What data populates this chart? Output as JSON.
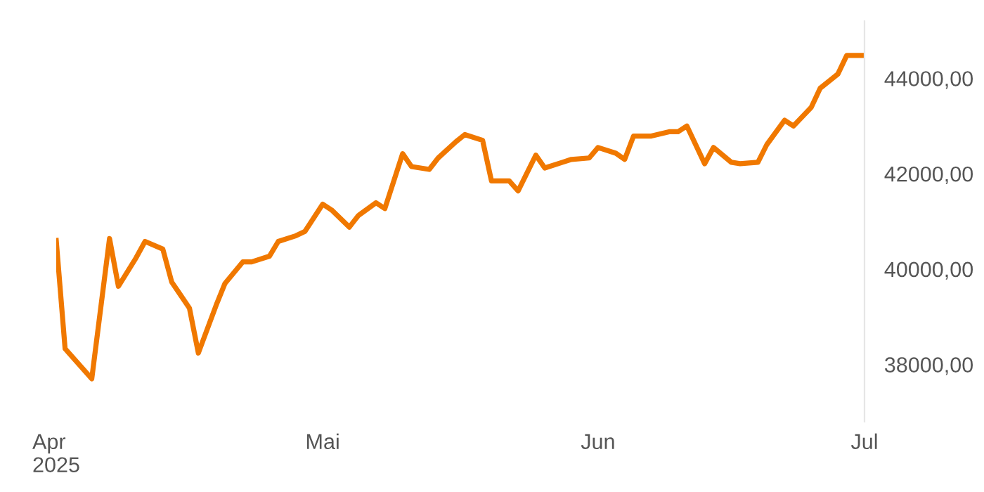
{
  "chart_data": {
    "type": "line",
    "x": [
      "2025-04-01",
      "2025-04-02",
      "2025-04-05",
      "2025-04-07",
      "2025-04-08",
      "2025-04-10",
      "2025-04-11",
      "2025-04-13",
      "2025-04-14",
      "2025-04-16",
      "2025-04-17",
      "2025-04-19",
      "2025-04-20",
      "2025-04-22",
      "2025-04-23",
      "2025-04-25",
      "2025-04-26",
      "2025-04-28",
      "2025-04-29",
      "2025-05-01",
      "2025-05-02",
      "2025-05-04",
      "2025-05-05",
      "2025-05-07",
      "2025-05-08",
      "2025-05-10",
      "2025-05-11",
      "2025-05-13",
      "2025-05-14",
      "2025-05-16",
      "2025-05-17",
      "2025-05-19",
      "2025-05-20",
      "2025-05-22",
      "2025-05-23",
      "2025-05-25",
      "2025-05-26",
      "2025-05-28",
      "2025-05-29",
      "2025-05-31",
      "2025-06-01",
      "2025-06-03",
      "2025-06-04",
      "2025-06-05",
      "2025-06-07",
      "2025-06-09",
      "2025-06-10",
      "2025-06-11",
      "2025-06-13",
      "2025-06-14",
      "2025-06-16",
      "2025-06-17",
      "2025-06-19",
      "2025-06-20",
      "2025-06-22",
      "2025-06-23",
      "2025-06-25",
      "2025-06-26",
      "2025-06-28",
      "2025-06-29",
      "2025-07-01"
    ],
    "series": [
      {
        "color": "#f07800",
        "values": [
          40600,
          38330,
          37700,
          40640,
          39640,
          40240,
          40580,
          40420,
          39730,
          39180,
          38240,
          39240,
          39700,
          40150,
          40150,
          40270,
          40580,
          40700,
          40790,
          41360,
          41240,
          40880,
          41120,
          41390,
          41270,
          42420,
          42150,
          42090,
          42330,
          42670,
          42820,
          42700,
          41850,
          41850,
          41640,
          42390,
          42120,
          42240,
          42300,
          42330,
          42550,
          42430,
          42300,
          42790,
          42790,
          42880,
          42880,
          43000,
          42210,
          42550,
          42240,
          42210,
          42240,
          42610,
          43120,
          43000,
          43390,
          43790,
          44090,
          44480,
          44480
        ]
      }
    ],
    "xlim": [
      "2025-04-01",
      "2025-07-01"
    ],
    "xticks": [
      {
        "value": "2025-04-01",
        "label": "Apr\n2025"
      },
      {
        "value": "2025-05-01",
        "label": "Mai"
      },
      {
        "value": "2025-06-01",
        "label": "Jun"
      },
      {
        "value": "2025-07-01",
        "label": "Jul"
      }
    ],
    "yticks": [
      {
        "value": 38000,
        "label": "38000,00"
      },
      {
        "value": 40000,
        "label": "40000,00"
      },
      {
        "value": 42000,
        "label": "42000,00"
      },
      {
        "value": 44000,
        "label": "44000,00"
      }
    ],
    "ylim": [
      36800,
      45200
    ],
    "grid": false,
    "marker": "none",
    "line_style": "solid"
  }
}
